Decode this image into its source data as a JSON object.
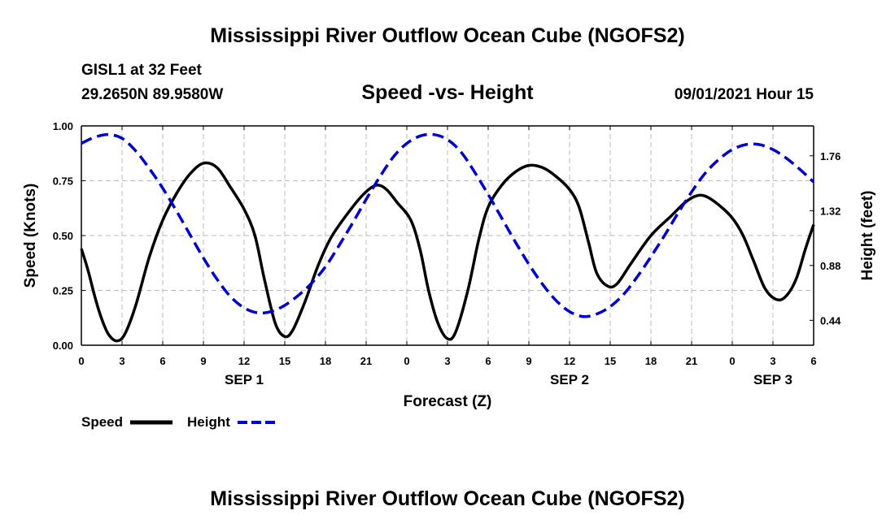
{
  "header": {
    "title": "Mississippi River Outflow Ocean Cube (NGOFS2)",
    "station": "GISL1 at 32 Feet",
    "coords": "29.2650N  89.9580W",
    "subtitle": "Speed -vs- Height",
    "datetime": "09/01/2021 Hour 15"
  },
  "footer": {
    "title": "Mississippi River Outflow Ocean Cube (NGOFS2)"
  },
  "legend": {
    "speed_label": "Speed",
    "height_label": "Height"
  },
  "colors": {
    "speed": "#000000",
    "height": "#0000cc",
    "grid": "#bbbbbb"
  },
  "chart_data": {
    "type": "line",
    "xlabel": "Forecast (Z)",
    "ylabel_left": "Speed (Knots)",
    "ylabel_right": "Height (feet)",
    "x_unit": "hours from 09/01/2021 00Z",
    "xlim": [
      0,
      54
    ],
    "ylim_left": [
      0,
      1
    ],
    "ylim_right": [
      0.24,
      2.0
    ],
    "x_ticks": [
      0,
      3,
      6,
      9,
      12,
      15,
      18,
      21,
      24,
      27,
      30,
      33,
      36,
      39,
      42,
      45,
      48,
      51,
      54
    ],
    "x_tick_labels": [
      "0",
      "3",
      "6",
      "9",
      "12",
      "15",
      "18",
      "21",
      "0",
      "3",
      "6",
      "9",
      "12",
      "15",
      "18",
      "21",
      "0",
      "3",
      "6"
    ],
    "day_labels": [
      {
        "x": 12,
        "label": "SEP 1"
      },
      {
        "x": 36,
        "label": "SEP 2"
      },
      {
        "x": 51,
        "label": "SEP 3"
      }
    ],
    "y_left_ticks": [
      "0.00",
      "0.25",
      "0.50",
      "0.75",
      "1.00"
    ],
    "y_left_tick_values": [
      0,
      0.25,
      0.5,
      0.75,
      1.0
    ],
    "y_right_ticks": [
      "0.44",
      "0.88",
      "1.32",
      "1.76"
    ],
    "y_right_tick_values": [
      0.44,
      0.88,
      1.32,
      1.76
    ],
    "grid": true,
    "series": [
      {
        "name": "Speed",
        "axis": "left",
        "style": "solid",
        "points": [
          [
            0,
            0.44
          ],
          [
            0.5,
            0.34
          ],
          [
            1,
            0.22
          ],
          [
            1.5,
            0.12
          ],
          [
            2,
            0.05
          ],
          [
            2.6,
            0.02
          ],
          [
            3.2,
            0.05
          ],
          [
            4,
            0.18
          ],
          [
            5,
            0.4
          ],
          [
            6,
            0.57
          ],
          [
            7,
            0.69
          ],
          [
            8,
            0.78
          ],
          [
            9,
            0.83
          ],
          [
            10,
            0.81
          ],
          [
            11,
            0.72
          ],
          [
            12,
            0.62
          ],
          [
            12.8,
            0.5
          ],
          [
            13.5,
            0.3
          ],
          [
            14.3,
            0.1
          ],
          [
            15,
            0.04
          ],
          [
            15.6,
            0.07
          ],
          [
            16.5,
            0.2
          ],
          [
            17.5,
            0.37
          ],
          [
            18.5,
            0.5
          ],
          [
            20,
            0.63
          ],
          [
            21,
            0.7
          ],
          [
            21.8,
            0.73
          ],
          [
            22.5,
            0.71
          ],
          [
            23.3,
            0.65
          ],
          [
            24.3,
            0.57
          ],
          [
            25,
            0.43
          ],
          [
            25.6,
            0.25
          ],
          [
            26.3,
            0.1
          ],
          [
            27,
            0.03
          ],
          [
            27.6,
            0.06
          ],
          [
            28.5,
            0.25
          ],
          [
            29.3,
            0.48
          ],
          [
            30,
            0.63
          ],
          [
            31,
            0.73
          ],
          [
            32,
            0.79
          ],
          [
            33,
            0.82
          ],
          [
            34,
            0.81
          ],
          [
            35,
            0.77
          ],
          [
            36,
            0.71
          ],
          [
            36.7,
            0.63
          ],
          [
            37.4,
            0.47
          ],
          [
            38,
            0.33
          ],
          [
            38.8,
            0.27
          ],
          [
            39.5,
            0.28
          ],
          [
            40.5,
            0.37
          ],
          [
            42,
            0.5
          ],
          [
            43.5,
            0.59
          ],
          [
            44.5,
            0.65
          ],
          [
            45.3,
            0.68
          ],
          [
            46,
            0.68
          ],
          [
            47,
            0.64
          ],
          [
            48,
            0.58
          ],
          [
            48.8,
            0.5
          ],
          [
            49.6,
            0.38
          ],
          [
            50.4,
            0.26
          ],
          [
            51.2,
            0.21
          ],
          [
            51.9,
            0.22
          ],
          [
            52.7,
            0.3
          ],
          [
            53.4,
            0.44
          ],
          [
            54,
            0.55
          ]
        ]
      },
      {
        "name": "Height",
        "axis": "right",
        "style": "dashed",
        "points": [
          [
            0,
            1.86
          ],
          [
            1,
            1.91
          ],
          [
            2,
            1.93
          ],
          [
            3,
            1.9
          ],
          [
            4,
            1.8
          ],
          [
            5,
            1.66
          ],
          [
            6,
            1.5
          ],
          [
            7,
            1.32
          ],
          [
            8,
            1.13
          ],
          [
            9,
            0.94
          ],
          [
            10,
            0.77
          ],
          [
            11,
            0.63
          ],
          [
            12,
            0.54
          ],
          [
            13,
            0.5
          ],
          [
            14,
            0.51
          ],
          [
            15,
            0.56
          ],
          [
            16,
            0.64
          ],
          [
            17,
            0.74
          ],
          [
            18,
            0.87
          ],
          [
            19,
            1.04
          ],
          [
            20,
            1.22
          ],
          [
            21,
            1.41
          ],
          [
            22,
            1.59
          ],
          [
            23,
            1.75
          ],
          [
            24,
            1.86
          ],
          [
            25,
            1.92
          ],
          [
            26,
            1.93
          ],
          [
            27,
            1.89
          ],
          [
            28,
            1.79
          ],
          [
            29,
            1.63
          ],
          [
            30,
            1.45
          ],
          [
            31,
            1.26
          ],
          [
            32,
            1.07
          ],
          [
            33,
            0.89
          ],
          [
            34,
            0.73
          ],
          [
            35,
            0.6
          ],
          [
            36,
            0.51
          ],
          [
            37,
            0.47
          ],
          [
            38,
            0.49
          ],
          [
            39,
            0.55
          ],
          [
            40,
            0.65
          ],
          [
            41,
            0.79
          ],
          [
            42,
            0.95
          ],
          [
            43,
            1.12
          ],
          [
            44,
            1.3
          ],
          [
            45,
            1.47
          ],
          [
            46,
            1.62
          ],
          [
            47,
            1.73
          ],
          [
            48,
            1.81
          ],
          [
            49,
            1.85
          ],
          [
            50,
            1.85
          ],
          [
            51,
            1.81
          ],
          [
            52,
            1.74
          ],
          [
            53,
            1.65
          ],
          [
            54,
            1.55
          ]
        ]
      }
    ]
  }
}
